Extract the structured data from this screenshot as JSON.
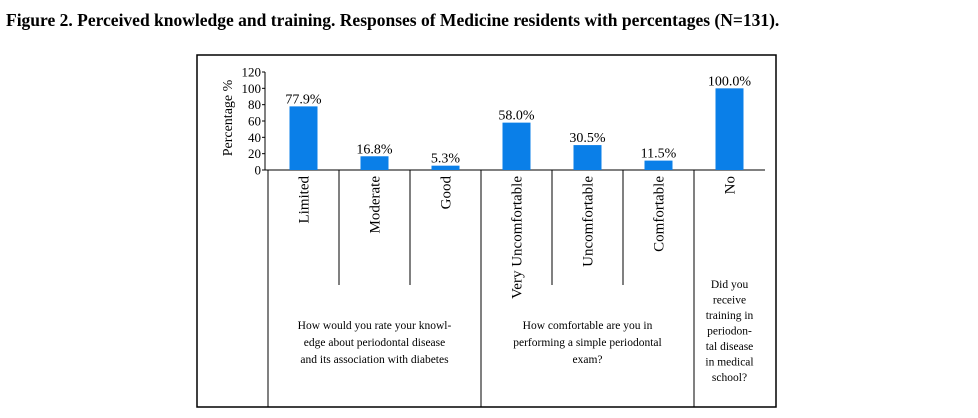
{
  "figure_title": "Figure 2. Perceived knowledge and training. Responses of Medicine residents with percentages (N=131).",
  "chart_data": {
    "type": "bar",
    "ylabel": "Percentage %",
    "xlabel": "",
    "ylim": [
      0,
      120
    ],
    "yticks": [
      "0",
      "20",
      "40",
      "60",
      "80",
      "100",
      "120"
    ],
    "bar_color": "#0a7fe8",
    "categories": [
      "Limited",
      "Moderate",
      "Good",
      "Very Uncomfortable",
      "Uncomfortable",
      "Comfortable",
      "No"
    ],
    "values": [
      77.9,
      16.8,
      5.3,
      58.0,
      30.5,
      11.5,
      100.0
    ],
    "data_labels": [
      "77.9%",
      "16.8%",
      "5.3%",
      "58.0%",
      "30.5%",
      "11.5%",
      "100.0%"
    ],
    "groups": [
      {
        "label": "How would you rate your knowledge about periodontal disease and its association with diabetes",
        "members": [
          "Limited",
          "Moderate",
          "Good"
        ]
      },
      {
        "label": "How comfortable are you in performing a simple periodontal exam?",
        "members": [
          "Very Uncomfortable",
          "Uncomfortable",
          "Comfortable"
        ]
      },
      {
        "label": "Did you receive training in periodontal disease in medical school?",
        "members": [
          "No"
        ]
      }
    ],
    "group_label_lines": [
      [
        "How would you rate your knowl-",
        "edge about periodontal disease",
        "and its association with diabetes"
      ],
      [
        "How comfortable are you in",
        "performing a simple periodontal",
        "exam?"
      ],
      [
        "Did you",
        "receive",
        "training in",
        "periodon-",
        "tal disease",
        "in medical",
        "school?"
      ]
    ],
    "grid": false,
    "legend": "none"
  }
}
